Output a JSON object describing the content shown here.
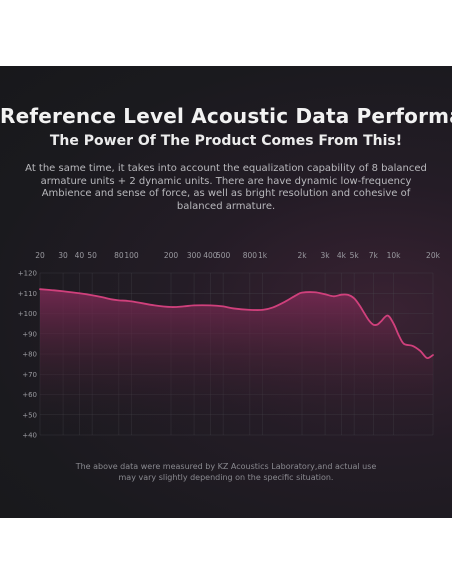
{
  "header": {
    "title": "Reference Level Acoustic Data Performance",
    "subtitle": "The Power Of The Product Comes From This!",
    "description": "At the same time, it takes into account the equalization capability of 8 balanced armature units + 2 dynamic units. There are have dynamic low-frequency Ambience and sense of force, as well as bright resolution and cohesive of balanced armature."
  },
  "footnote": "The above data were measured by KZ Acoustics Laboratory,and actual use may vary slightly depending on the specific situation.",
  "colors": {
    "background": "#1a1a1e",
    "curve": "#d0407c",
    "fill_top": "#7e2a56",
    "grid": "#4a4a50",
    "axis_text": "#9a9aa0"
  },
  "chart_data": {
    "type": "area",
    "title": "",
    "xlabel": "",
    "ylabel": "",
    "x_scale": "log",
    "xlim": [
      20,
      20000
    ],
    "ylim": [
      40,
      120
    ],
    "grid": true,
    "x_ticks": [
      {
        "value": 20,
        "label": "20"
      },
      {
        "value": 30,
        "label": "30"
      },
      {
        "value": 40,
        "label": "40"
      },
      {
        "value": 50,
        "label": "50"
      },
      {
        "value": 80,
        "label": "80"
      },
      {
        "value": 100,
        "label": "100"
      },
      {
        "value": 200,
        "label": "200"
      },
      {
        "value": 300,
        "label": "300"
      },
      {
        "value": 400,
        "label": "400"
      },
      {
        "value": 500,
        "label": "500"
      },
      {
        "value": 800,
        "label": "800"
      },
      {
        "value": 1000,
        "label": "1k"
      },
      {
        "value": 2000,
        "label": "2k"
      },
      {
        "value": 3000,
        "label": "3k"
      },
      {
        "value": 4000,
        "label": "4k"
      },
      {
        "value": 5000,
        "label": "5k"
      },
      {
        "value": 7000,
        "label": "7k"
      },
      {
        "value": 10000,
        "label": "10k"
      },
      {
        "value": 20000,
        "label": "20k"
      }
    ],
    "y_ticks": [
      {
        "value": 120,
        "label": "+120"
      },
      {
        "value": 110,
        "label": "+110"
      },
      {
        "value": 100,
        "label": "+100"
      },
      {
        "value": 90,
        "label": "+90"
      },
      {
        "value": 80,
        "label": "+80"
      },
      {
        "value": 70,
        "label": "+70"
      },
      {
        "value": 60,
        "label": "+60"
      },
      {
        "value": 50,
        "label": "+50"
      },
      {
        "value": 40,
        "label": "+40"
      }
    ],
    "series": [
      {
        "x": [
          20,
          25,
          30,
          40,
          50,
          60,
          70,
          80,
          100,
          150,
          200,
          250,
          300,
          400,
          500,
          600,
          800,
          1000,
          1200,
          1500,
          1800,
          2000,
          2500,
          3000,
          3500,
          4000,
          4500,
          5000,
          5500,
          6000,
          6500,
          7000,
          7500,
          8000,
          9000,
          10000,
          11000,
          12000,
          14000,
          16000,
          18000,
          20000
        ],
        "y": [
          112,
          111.5,
          111,
          110,
          109,
          108,
          107,
          106.5,
          106,
          104,
          103.2,
          103.5,
          104,
          104,
          103.5,
          102.5,
          101.8,
          101.8,
          103,
          106,
          109,
          110.3,
          110.5,
          109.5,
          108.5,
          109.3,
          109.2,
          107.5,
          104,
          100,
          96.5,
          94.5,
          94.5,
          96,
          99,
          95,
          89,
          85,
          84,
          81.5,
          78,
          79.5
        ]
      }
    ]
  }
}
